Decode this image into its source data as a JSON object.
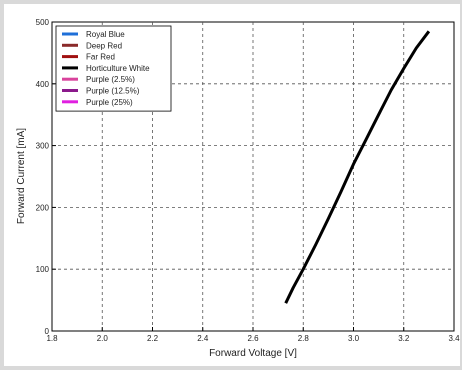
{
  "chart_data": {
    "type": "line",
    "title": "",
    "xlabel": "Forward Voltage [V]",
    "ylabel": "Forward Current [mA]",
    "xlim": [
      1.8,
      3.4
    ],
    "ylim": [
      0,
      500
    ],
    "xticks": [
      "1.8",
      "2.0",
      "2.2",
      "2.4",
      "2.6",
      "2.8",
      "3.0",
      "3.2",
      "3.4"
    ],
    "yticks": [
      "0",
      "100",
      "200",
      "300",
      "400",
      "500"
    ],
    "grid": true,
    "legend_position": "top-left",
    "series": [
      {
        "name": "Royal Blue",
        "color": "#1f6fd8",
        "x": [],
        "y": []
      },
      {
        "name": "Deep Red",
        "color": "#8a2a2a",
        "x": [],
        "y": []
      },
      {
        "name": "Far Red",
        "color": "#a01010",
        "x": [],
        "y": []
      },
      {
        "name": "Horticulture White",
        "color": "#000000",
        "x": [
          2.73,
          2.76,
          2.8,
          2.85,
          2.9,
          2.95,
          3.0,
          3.05,
          3.1,
          3.15,
          3.2,
          3.25,
          3.3
        ],
        "y": [
          45,
          70,
          100,
          140,
          182,
          225,
          270,
          310,
          350,
          390,
          425,
          458,
          485
        ]
      },
      {
        "name": "Purple (2.5%)",
        "color": "#d9439c",
        "x": [],
        "y": []
      },
      {
        "name": "Purple (12.5%)",
        "color": "#8b1a8b",
        "x": [],
        "y": []
      },
      {
        "name": "Purple (25%)",
        "color": "#e020e0",
        "x": [],
        "y": []
      }
    ]
  }
}
